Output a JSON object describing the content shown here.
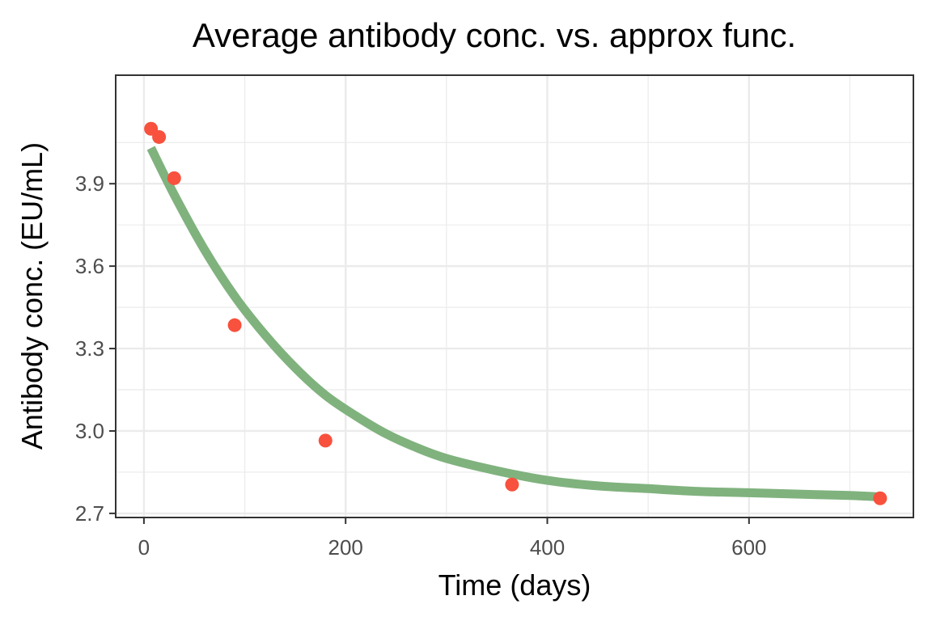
{
  "chart_data": {
    "type": "scatter",
    "title": "Average antibody conc. vs. approx func.",
    "xlabel": "Time (days)",
    "ylabel": "Antibody conc. (EU/mL)",
    "xlim": [
      -28,
      763
    ],
    "ylim": [
      2.685,
      4.295
    ],
    "x_ticks": [
      0,
      200,
      400,
      600
    ],
    "x_tick_labels": [
      "0",
      "200",
      "400",
      "600"
    ],
    "y_ticks": [
      2.7,
      3.0,
      3.3,
      3.6,
      3.9
    ],
    "y_tick_labels": [
      "2.7",
      "3.0",
      "3.3",
      "3.6",
      "3.9"
    ],
    "grid": true,
    "legend": "none",
    "colors": {
      "points": "#F8513D",
      "curve": "#80B27E",
      "grid": "#EBEBEB",
      "panel_border": "#333333"
    },
    "series": [
      {
        "kind": "points",
        "x": [
          7,
          15,
          30,
          90,
          180,
          365,
          730
        ],
        "y": [
          4.1,
          4.07,
          3.92,
          3.385,
          2.965,
          2.805,
          2.755
        ]
      },
      {
        "kind": "curve",
        "x": [
          7,
          30,
          60,
          90,
          120,
          150,
          180,
          210,
          240,
          270,
          300,
          350,
          400,
          450,
          500,
          550,
          600,
          650,
          700,
          730
        ],
        "y": [
          4.03,
          3.86,
          3.66,
          3.49,
          3.35,
          3.23,
          3.13,
          3.055,
          2.99,
          2.94,
          2.9,
          2.855,
          2.82,
          2.8,
          2.79,
          2.78,
          2.775,
          2.77,
          2.765,
          2.76
        ]
      }
    ]
  }
}
